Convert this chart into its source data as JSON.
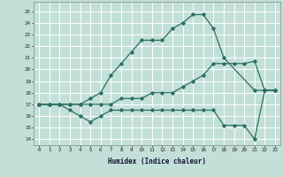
{
  "xlabel": "Humidex (Indice chaleur)",
  "background_color": "#c2e0d8",
  "grid_color": "#ffffff",
  "line_color": "#2d6e63",
  "xlim": [
    -0.5,
    23.5
  ],
  "ylim": [
    13.5,
    25.8
  ],
  "yticks": [
    14,
    15,
    16,
    17,
    18,
    19,
    20,
    21,
    22,
    23,
    24,
    25
  ],
  "xticks": [
    0,
    1,
    2,
    3,
    4,
    5,
    6,
    7,
    8,
    9,
    10,
    11,
    12,
    13,
    14,
    15,
    16,
    17,
    18,
    19,
    20,
    21,
    22,
    23
  ],
  "lines": [
    {
      "x": [
        0,
        1,
        2,
        3,
        4,
        5,
        6,
        7,
        8,
        9,
        10,
        11,
        12,
        13,
        14,
        15,
        16,
        17,
        18,
        21,
        22,
        23
      ],
      "y": [
        17,
        17,
        17,
        17,
        17,
        17.5,
        18,
        19.5,
        20.5,
        21.5,
        22.5,
        22.5,
        22.5,
        23.5,
        24,
        24.7,
        24.7,
        23.5,
        21,
        18.2,
        18.2,
        18.2
      ]
    },
    {
      "x": [
        0,
        1,
        2,
        3,
        4,
        5,
        6,
        7,
        8,
        9,
        10,
        11,
        12,
        13,
        14,
        15,
        16,
        17,
        18,
        19,
        20,
        21,
        22,
        23
      ],
      "y": [
        17,
        17,
        17,
        17,
        17,
        17,
        17,
        17,
        17.5,
        17.5,
        17.5,
        18,
        18,
        18,
        18.5,
        19,
        19.5,
        20.5,
        20.5,
        20.5,
        20.5,
        20.7,
        18.2,
        18.2
      ]
    },
    {
      "x": [
        0,
        1,
        2,
        3,
        4,
        5,
        6,
        7,
        8,
        9,
        10,
        11,
        12,
        13,
        14,
        15,
        16,
        17,
        18,
        19,
        20,
        21,
        22,
        23
      ],
      "y": [
        17,
        17,
        17,
        16.5,
        16,
        15.5,
        16,
        16.5,
        16.5,
        16.5,
        16.5,
        16.5,
        16.5,
        16.5,
        16.5,
        16.5,
        16.5,
        16.5,
        15.2,
        15.2,
        15.2,
        14,
        18.2,
        18.2
      ]
    }
  ]
}
